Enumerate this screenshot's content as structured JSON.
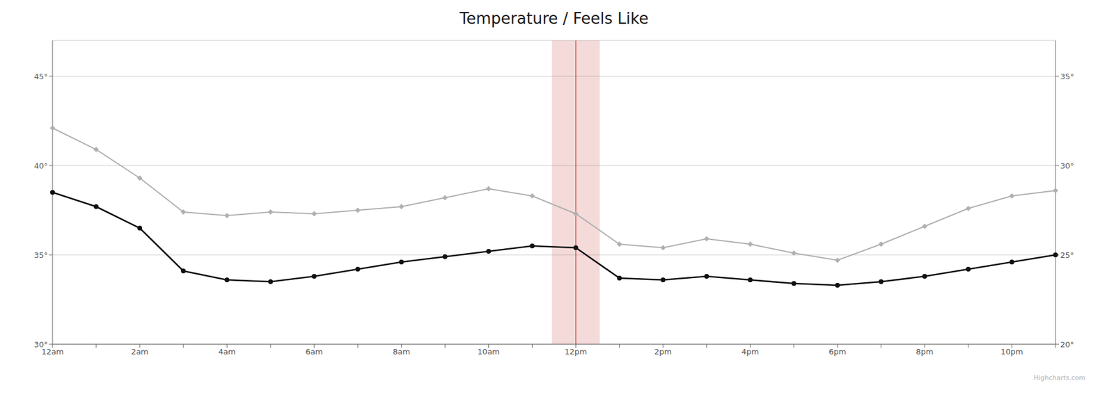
{
  "chart_data": {
    "type": "line",
    "title": "Temperature / Feels Like",
    "categories": [
      "12am",
      null,
      "2am",
      null,
      "4am",
      null,
      "6am",
      null,
      "8am",
      null,
      "10am",
      null,
      "12pm",
      null,
      "2pm",
      null,
      "4pm",
      null,
      "6pm",
      null,
      "8pm",
      null,
      "10pm",
      null
    ],
    "series": [
      {
        "name": "Feels Like",
        "color": "#b0b0b0",
        "marker": "diamond",
        "values": [
          42.1,
          40.9,
          39.3,
          37.4,
          37.2,
          37.4,
          37.3,
          37.5,
          37.7,
          38.2,
          38.7,
          38.3,
          37.3,
          35.6,
          35.4,
          35.9,
          35.6,
          35.1,
          34.7,
          35.6,
          36.6,
          37.6,
          38.3,
          38.6
        ]
      },
      {
        "name": "Temperature",
        "color": "#111111",
        "marker": "circle",
        "values": [
          38.5,
          37.7,
          36.5,
          34.1,
          33.6,
          33.5,
          33.8,
          34.2,
          34.6,
          34.9,
          35.2,
          35.5,
          35.4,
          33.7,
          33.6,
          33.8,
          33.6,
          33.4,
          33.3,
          33.5,
          33.8,
          34.2,
          34.6,
          35.0
        ]
      }
    ],
    "ylim": [
      30,
      47
    ],
    "yticks": [
      {
        "value": 30,
        "label": "30°"
      },
      {
        "value": 35,
        "label": "35°"
      },
      {
        "value": 40,
        "label": "40°"
      },
      {
        "value": 45,
        "label": "45°"
      }
    ],
    "y2lim": [
      20,
      37
    ],
    "y2ticks": [
      {
        "value": 20,
        "label": "20°"
      },
      {
        "value": 25,
        "label": "25°"
      },
      {
        "value": 30,
        "label": "30°"
      },
      {
        "value": 35,
        "label": "35°"
      }
    ],
    "grid": true,
    "annotations": [
      {
        "x": "12pm",
        "color": "#cc4444"
      },
      {
        "text": "Highcharts.com"
      }
    ]
  }
}
